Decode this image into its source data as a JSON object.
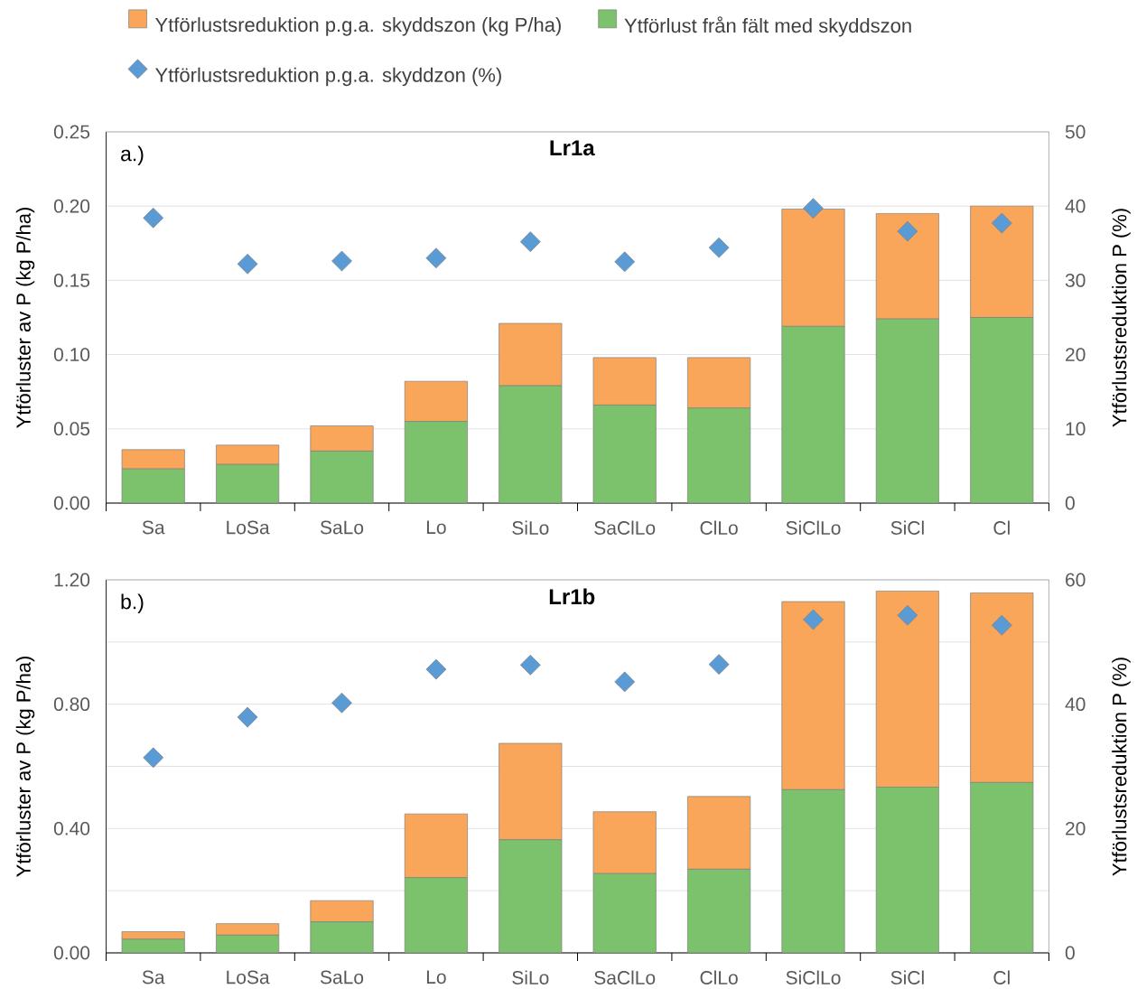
{
  "chart_data": [
    {
      "type": "bar",
      "title": "Lr1a",
      "annotations": [
        "a.)"
      ],
      "stacked": true,
      "legend": "top",
      "grid": "y",
      "marker": "diamond",
      "categories": [
        "Sa",
        "LoSa",
        "SaLo",
        "Lo",
        "SiLo",
        "SaClLo",
        "ClLo",
        "SiClLo",
        "SiCl",
        "Cl"
      ],
      "ylabel": "Ytförluster av P (kg P/ha)",
      "y2label": "Ytförlustsreduktion P (%)",
      "ylim": [
        0,
        0.25
      ],
      "yticks": [
        {
          "value": 0,
          "label": "0.00"
        },
        {
          "value": 0.05,
          "label": "0.05"
        },
        {
          "value": 0.1,
          "label": "0.10"
        },
        {
          "value": 0.15,
          "label": "0.15"
        },
        {
          "value": 0.2,
          "label": "0.20"
        },
        {
          "value": 0.25,
          "label": "0.25"
        }
      ],
      "y2lim": [
        0,
        50
      ],
      "y2ticks": [
        0,
        10,
        20,
        30,
        40,
        50
      ],
      "series": [
        {
          "name": "Ytförlust från fält med skyddszon",
          "color": "#7cc16b",
          "values": [
            0.023,
            0.026,
            0.035,
            0.055,
            0.079,
            0.066,
            0.064,
            0.119,
            0.124,
            0.125
          ]
        },
        {
          "name": "Ytförlustsreduktion p.g.a. skyddszon (kg P/ha)",
          "color": "#f9a65a",
          "values": [
            0.013,
            0.013,
            0.017,
            0.027,
            0.042,
            0.032,
            0.034,
            0.079,
            0.071,
            0.075
          ]
        },
        {
          "name": "Ytförlustsreduktion p.g.a. skyddzon (%)",
          "type": "scatter",
          "axis": "y2",
          "color": "#5b9bd5",
          "x": [
            "Sa",
            "LoSa",
            "SaLo",
            "Lo",
            "SiLo",
            "SaClLo",
            "ClLo",
            "SiClLo",
            "SiCl",
            "Cl"
          ],
          "values": [
            38.4,
            32.2,
            32.6,
            33.0,
            35.2,
            32.5,
            34.4,
            39.7,
            36.6,
            37.7
          ]
        }
      ]
    },
    {
      "type": "bar",
      "title": "Lr1b",
      "annotations": [
        "b.)"
      ],
      "stacked": true,
      "grid": "y",
      "marker": "diamond",
      "categories": [
        "Sa",
        "LoSa",
        "SaLo",
        "Lo",
        "SiLo",
        "SaClLo",
        "ClLo",
        "SiClLo",
        "SiCl",
        "Cl"
      ],
      "ylabel": "Ytförluster av P (kg P/ha)",
      "y2label": "Ytförlustsreduktion P (%)",
      "ylim": [
        0,
        1.2
      ],
      "yticks": [
        {
          "value": 0,
          "label": "0.00"
        },
        {
          "value": 0.2,
          "label": null
        },
        {
          "value": 0.4,
          "label": "0.40"
        },
        {
          "value": 0.6,
          "label": null
        },
        {
          "value": 0.8,
          "label": "0.80"
        },
        {
          "value": 1.0,
          "label": null
        },
        {
          "value": 1.2,
          "label": "1.20"
        }
      ],
      "y2lim": [
        0,
        60
      ],
      "y2ticks": [
        0,
        20,
        40,
        60
      ],
      "series": [
        {
          "color": "#7cc16b",
          "values": [
            0.044,
            0.057,
            0.1,
            0.242,
            0.364,
            0.255,
            0.269,
            0.525,
            0.533,
            0.548
          ]
        },
        {
          "color": "#f9a65a",
          "values": [
            0.024,
            0.037,
            0.068,
            0.205,
            0.31,
            0.199,
            0.234,
            0.605,
            0.631,
            0.61
          ]
        },
        {
          "type": "scatter",
          "axis": "y2",
          "color": "#5b9bd5",
          "x": [
            "Sa",
            "LoSa",
            "SaLo",
            "Lo",
            "SiLo",
            "SaClLo",
            "ClLo",
            "SiClLo",
            "SiCl",
            "Cl"
          ],
          "values": [
            31.4,
            37.9,
            40.2,
            45.6,
            46.3,
            43.6,
            46.4,
            53.6,
            54.3,
            52.7
          ]
        }
      ]
    }
  ]
}
